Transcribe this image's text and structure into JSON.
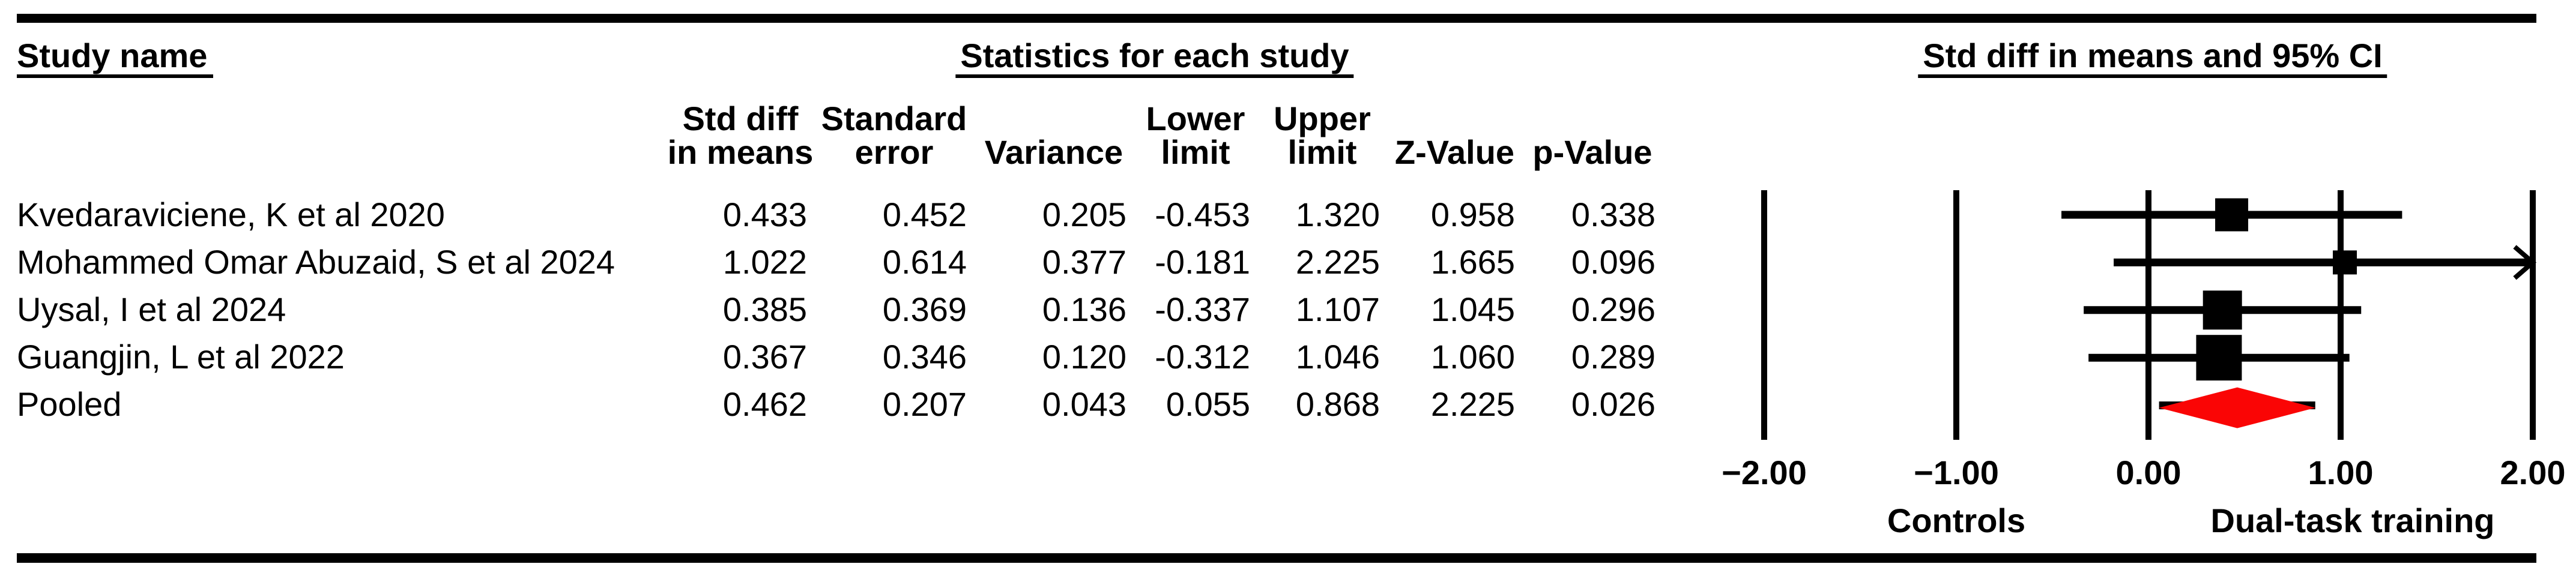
{
  "figure": {
    "background": "#FFFFFF",
    "foreground": "#000000",
    "pooled_color": "#FA0505"
  },
  "header": {
    "study_col_title": "Study name",
    "stats_title": "Statistics for each study",
    "plot_title": "Std diff in means and 95% CI",
    "stat_columns": [
      {
        "lines": [
          "Std diff",
          "in means"
        ]
      },
      {
        "lines": [
          "Standard",
          "error"
        ]
      },
      {
        "lines": [
          "Variance"
        ]
      },
      {
        "lines": [
          "Lower",
          "limit"
        ]
      },
      {
        "lines": [
          "Upper",
          "limit"
        ]
      },
      {
        "lines": [
          "Z-Value"
        ]
      },
      {
        "lines": [
          "p-Value"
        ]
      }
    ]
  },
  "rows": [
    {
      "study": "Kvedaraviciene, K et al 2020",
      "values": [
        "0.433",
        "0.452",
        "0.205",
        "-0.453",
        "1.320",
        "0.958",
        "0.338"
      ]
    },
    {
      "study": "Mohammed Omar Abuzaid, S et al 2024",
      "values": [
        "1.022",
        "0.614",
        "0.377",
        "-0.181",
        "2.225",
        "1.665",
        "0.096"
      ]
    },
    {
      "study": "Uysal, I et al 2024",
      "values": [
        "0.385",
        "0.369",
        "0.136",
        "-0.337",
        "1.107",
        "1.045",
        "0.296"
      ]
    },
    {
      "study": "Guangjin, L et al 2022",
      "values": [
        "0.367",
        "0.346",
        "0.120",
        "-0.312",
        "1.046",
        "1.060",
        "0.289"
      ]
    },
    {
      "study": "Pooled",
      "values": [
        "0.462",
        "0.207",
        "0.043",
        "0.055",
        "0.868",
        "2.225",
        "0.026"
      ]
    }
  ],
  "axis": {
    "tick_values": [
      -2,
      -1,
      0,
      1,
      2
    ],
    "tick_labels": [
      "−2.00",
      "−1.00",
      "0.00",
      "1.00",
      "2.00"
    ],
    "left_label": "Controls",
    "right_label": "Dual-task training"
  },
  "chart_data": {
    "type": "forest",
    "title": "Std diff in means and 95% CI",
    "xlim": [
      -2,
      2
    ],
    "x_ticks": [
      -2,
      -1,
      0,
      1,
      2
    ],
    "x_tick_labels": [
      "-2.00",
      "-1.00",
      "0.00",
      "1.00",
      "2.00"
    ],
    "direction_labels": {
      "left": "Controls",
      "right": "Dual-task training"
    },
    "grid": true,
    "studies": [
      {
        "name": "Kvedaraviciene, K et al 2020",
        "std_diff": 0.433,
        "standard_error": 0.452,
        "variance": 0.205,
        "lower": -0.453,
        "upper": 1.32,
        "z": 0.958,
        "p": 0.338,
        "marker": "square",
        "marker_px": 55,
        "upper_clipped": false
      },
      {
        "name": "Mohammed Omar Abuzaid, S et al 2024",
        "std_diff": 1.022,
        "standard_error": 0.614,
        "variance": 0.377,
        "lower": -0.181,
        "upper": 2.225,
        "z": 1.665,
        "p": 0.096,
        "marker": "square",
        "marker_px": 40,
        "upper_clipped": true
      },
      {
        "name": "Uysal, I et al 2024",
        "std_diff": 0.385,
        "standard_error": 0.369,
        "variance": 0.136,
        "lower": -0.337,
        "upper": 1.107,
        "z": 1.045,
        "p": 0.296,
        "marker": "square",
        "marker_px": 65,
        "upper_clipped": false
      },
      {
        "name": "Guangjin, L et al 2022",
        "std_diff": 0.367,
        "standard_error": 0.346,
        "variance": 0.12,
        "lower": -0.312,
        "upper": 1.046,
        "z": 1.06,
        "p": 0.289,
        "marker": "square",
        "marker_px": 76,
        "upper_clipped": false
      },
      {
        "name": "Pooled",
        "std_diff": 0.462,
        "standard_error": 0.207,
        "variance": 0.043,
        "lower": 0.055,
        "upper": 0.868,
        "z": 2.225,
        "p": 0.026,
        "marker": "diamond",
        "color": "#FA0505",
        "upper_clipped": false
      }
    ]
  }
}
